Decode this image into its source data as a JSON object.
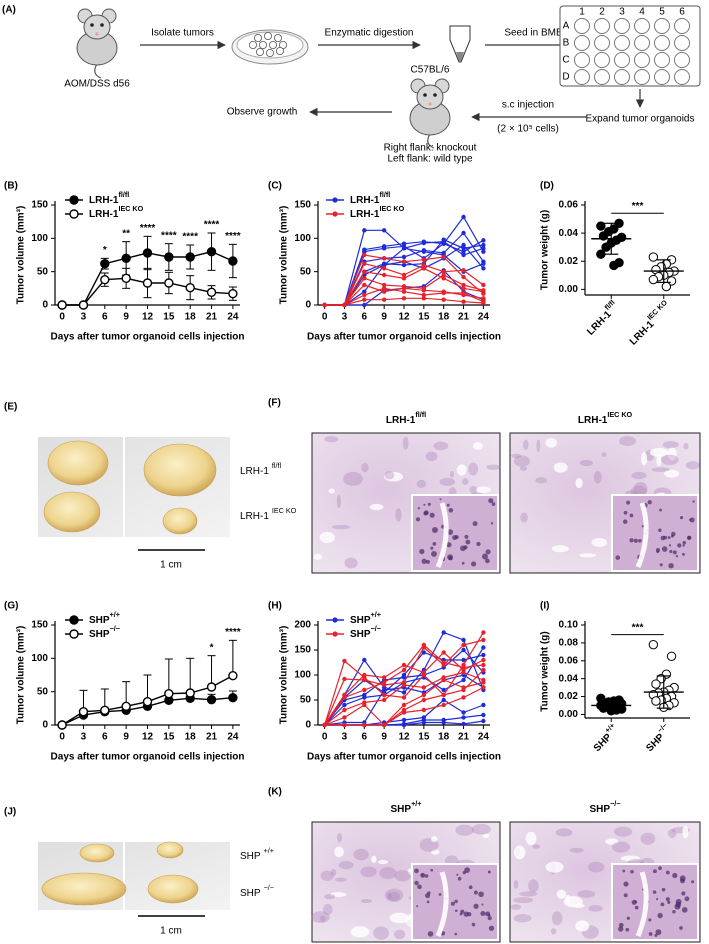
{
  "workflow": {
    "panel": "(A)",
    "start_label": "AOM/DSS d56",
    "steps": [
      "Isolate tumors",
      "Enzymatic digestion",
      "Seed in BME"
    ],
    "plate_cols": [
      "1",
      "2",
      "3",
      "4",
      "5",
      "6"
    ],
    "plate_rows": [
      "A",
      "B",
      "C",
      "D"
    ],
    "expand": "Expand tumor organoids",
    "injection": "s.c injection",
    "cells": "(2 × 10⁵ cells)",
    "strain": "C57BL/6",
    "flanks": [
      "Right flank: knockout",
      "Left flank: wild type"
    ],
    "observe": "Observe growth"
  },
  "chart_data": [
    {
      "type": "errorline",
      "panel": "(B)",
      "y_label": "Tumor volume (mm³)",
      "x_label": "Days after tumor organoid cells injection",
      "x": [
        0,
        3,
        6,
        9,
        12,
        15,
        18,
        21,
        24
      ],
      "xlim": [
        -1,
        25
      ],
      "xticks": [
        0,
        3,
        6,
        9,
        12,
        15,
        18,
        21,
        24
      ],
      "ylim": [
        0,
        150
      ],
      "yticks": [
        0,
        50,
        100,
        150
      ],
      "legend": "upper left",
      "series": [
        {
          "name": "LRH-1",
          "name_sup": "fl/fl",
          "color": "#000000",
          "marker": "filled",
          "error_bars": "both",
          "values": [
            0,
            0,
            62,
            70,
            78,
            72,
            72,
            80,
            66
          ],
          "errors": [
            0,
            0,
            8,
            25,
            25,
            20,
            18,
            28,
            25
          ]
        },
        {
          "name": "LRH-1",
          "name_sup": "IEC KO",
          "color": "#000000",
          "marker": "open",
          "error_bars": "both",
          "values": [
            0,
            0,
            38,
            40,
            33,
            33,
            26,
            19,
            17
          ],
          "errors": [
            0,
            0,
            10,
            15,
            22,
            16,
            18,
            10,
            10
          ]
        }
      ],
      "annotations": [
        {
          "x": 6,
          "label": "*"
        },
        {
          "x": 9,
          "label": "**"
        },
        {
          "x": 12,
          "label": "****"
        },
        {
          "x": 15,
          "label": "****"
        },
        {
          "x": 18,
          "label": "****"
        },
        {
          "x": 21,
          "label": "****"
        },
        {
          "x": 24,
          "label": "****"
        }
      ]
    },
    {
      "type": "multiline",
      "panel": "(C)",
      "y_label": "Tumor volume (mm³)",
      "x_label": "Days after tumor organoid cells injection",
      "x": [
        0,
        3,
        6,
        9,
        12,
        15,
        18,
        21,
        24
      ],
      "xlim": [
        -1,
        25
      ],
      "xticks": [
        0,
        3,
        6,
        9,
        12,
        15,
        18,
        21,
        24
      ],
      "ylim": [
        0,
        150
      ],
      "yticks": [
        0,
        50,
        100,
        150
      ],
      "legend": "upper left",
      "groups": [
        {
          "name": "LRH-1",
          "name_sup": "fl/fl",
          "color": "#1f2bd8",
          "series": [
            [
              0,
              0,
              112,
              112,
              85,
              93,
              95,
              75,
              85
            ],
            [
              0,
              0,
              83,
              88,
              92,
              95,
              92,
              132,
              80
            ],
            [
              0,
              0,
              80,
              85,
              88,
              70,
              92,
              80,
              97
            ],
            [
              0,
              0,
              65,
              70,
              72,
              82,
              78,
              108,
              65
            ],
            [
              0,
              0,
              50,
              62,
              60,
              62,
              98,
              85,
              90
            ],
            [
              0,
              0,
              45,
              60,
              65,
              55,
              70,
              90,
              55
            ],
            [
              0,
              0,
              20,
              60,
              85,
              80,
              75,
              50,
              62
            ],
            [
              0,
              0,
              0,
              22,
              25,
              28,
              52,
              20,
              8
            ]
          ]
        },
        {
          "name": "LRH-1",
          "name_sup": "IEC KO",
          "color": "#e8222b",
          "series": [
            [
              0,
              0,
              75,
              70,
              65,
              68,
              72,
              42,
              17
            ],
            [
              0,
              0,
              62,
              55,
              45,
              60,
              50,
              52,
              30
            ],
            [
              0,
              0,
              50,
              45,
              40,
              55,
              40,
              25,
              20
            ],
            [
              0,
              0,
              40,
              30,
              28,
              25,
              45,
              30,
              22
            ],
            [
              0,
              0,
              30,
              20,
              25,
              22,
              20,
              15,
              10
            ],
            [
              0,
              0,
              15,
              25,
              20,
              15,
              18,
              18,
              5
            ],
            [
              0,
              0,
              8,
              8,
              10,
              10,
              8,
              5,
              3
            ]
          ]
        }
      ]
    },
    {
      "type": "dotplot",
      "panel": "(D)",
      "y_label": "Tumor weight (g)",
      "categories": [
        {
          "base": "LRH-1",
          "sup": "fl/fl"
        },
        {
          "base": "LRH-1",
          "sup": "IEC KO"
        }
      ],
      "ylim": [
        -0.004,
        0.06
      ],
      "yticks": [
        {
          "value": 0,
          "label": "0.00"
        },
        {
          "value": 0.02,
          "label": "0.02"
        },
        {
          "value": 0.04,
          "label": "0.04"
        },
        {
          "value": 0.06,
          "label": "0.06"
        }
      ],
      "groups": [
        {
          "marker": "filled",
          "mean": 0.036,
          "sd": 0.011,
          "values": [
            0.045,
            0.047,
            0.043,
            0.041,
            0.038,
            0.037,
            0.035,
            0.033,
            0.03,
            0.025,
            0.019,
            0.017
          ]
        },
        {
          "marker": "open",
          "mean": 0.013,
          "sd": 0.008,
          "values": [
            0.023,
            0.021,
            0.018,
            0.016,
            0.014,
            0.013,
            0.012,
            0.01,
            0.009,
            0.007,
            0.006,
            0.002
          ]
        }
      ],
      "significance": "***"
    },
    {
      "type": "errorline",
      "panel": "(G)",
      "y_label": "Tumor volume (mm³)",
      "x_label": "Days after tumor organoid cells injection",
      "x": [
        0,
        3,
        6,
        9,
        12,
        15,
        18,
        21,
        24
      ],
      "xlim": [
        -1,
        25
      ],
      "xticks": [
        0,
        3,
        6,
        9,
        12,
        15,
        18,
        21,
        24
      ],
      "ylim": [
        0,
        150
      ],
      "yticks": [
        0,
        50,
        100,
        150
      ],
      "legend": "upper left",
      "series": [
        {
          "name": "SHP",
          "name_sup": "+/+",
          "color": "#000000",
          "marker": "filled",
          "error_bars": "upper",
          "values": [
            0,
            15,
            20,
            22,
            28,
            37,
            40,
            38,
            41
          ],
          "errors": [
            0,
            4,
            5,
            5,
            6,
            8,
            9,
            8,
            10
          ]
        },
        {
          "name": "SHP",
          "name_sup": "−/−",
          "color": "#000000",
          "marker": "open",
          "error_bars": "upper",
          "values": [
            0,
            20,
            22,
            28,
            35,
            47,
            48,
            57,
            74
          ],
          "errors": [
            0,
            32,
            32,
            37,
            40,
            52,
            52,
            47,
            53
          ]
        }
      ],
      "annotations": [
        {
          "x": 21,
          "label": "*"
        },
        {
          "x": 24,
          "label": "****"
        }
      ]
    },
    {
      "type": "multiline",
      "panel": "(H)",
      "y_label": "Tumor volume (mm³)",
      "x_label": "Days after tumor organoid cells injection",
      "x": [
        0,
        3,
        6,
        9,
        12,
        15,
        18,
        21,
        24
      ],
      "xlim": [
        -1,
        25
      ],
      "xticks": [
        0,
        3,
        6,
        9,
        12,
        15,
        18,
        21,
        24
      ],
      "ylim": [
        0,
        200
      ],
      "yticks": [
        0,
        50,
        100,
        150,
        200
      ],
      "legend": "upper left",
      "groups": [
        {
          "name": "SHP",
          "name_sup": "+/+",
          "color": "#1f2bd8",
          "series": [
            [
              0,
              55,
              90,
              65,
              100,
              145,
              130,
              130,
              140
            ],
            [
              0,
              60,
              130,
              75,
              65,
              110,
              185,
              170,
              70
            ],
            [
              0,
              50,
              60,
              90,
              95,
              100,
              115,
              150,
              105
            ],
            [
              0,
              40,
              55,
              60,
              85,
              95,
              70,
              90,
              155
            ],
            [
              0,
              5,
              5,
              70,
              75,
              65,
              90,
              100,
              75
            ],
            [
              0,
              0,
              0,
              5,
              10,
              15,
              50,
              25,
              40
            ],
            [
              0,
              0,
              0,
              0,
              2,
              10,
              10,
              15,
              20
            ],
            [
              0,
              0,
              0,
              0,
              0,
              5,
              5,
              2,
              8
            ]
          ]
        },
        {
          "name": "SHP",
          "name_sup": "−/−",
          "color": "#e8222b",
          "series": [
            [
              0,
              128,
              95,
              60,
              55,
              100,
              60,
              120,
              185
            ],
            [
              0,
              92,
              90,
              80,
              85,
              155,
              120,
              160,
              170
            ],
            [
              0,
              60,
              100,
              95,
              120,
              105,
              145,
              110,
              130
            ],
            [
              0,
              55,
              70,
              85,
              110,
              160,
              125,
              115,
              120
            ],
            [
              0,
              30,
              45,
              50,
              80,
              75,
              95,
              105,
              90
            ],
            [
              0,
              15,
              40,
              0,
              40,
              60,
              90,
              75,
              85
            ],
            [
              0,
              0,
              0,
              0,
              30,
              50,
              60,
              70,
              110
            ],
            [
              0,
              0,
              0,
              0,
              25,
              30,
              40,
              55,
              75
            ]
          ]
        }
      ]
    },
    {
      "type": "dotplot",
      "panel": "(I)",
      "y_label": "Tumor weight (g)",
      "categories": [
        {
          "base": "SHP",
          "sup": "+/+"
        },
        {
          "base": "SHP",
          "sup": "−/−"
        }
      ],
      "ylim": [
        -0.004,
        0.1
      ],
      "yticks": [
        {
          "value": 0,
          "label": "0.00"
        },
        {
          "value": 0.02,
          "label": "0.02"
        },
        {
          "value": 0.04,
          "label": "0.04"
        },
        {
          "value": 0.06,
          "label": "0.06"
        },
        {
          "value": 0.08,
          "label": "0.08"
        },
        {
          "value": 0.1,
          "label": "0.10"
        }
      ],
      "groups": [
        {
          "marker": "filled",
          "mean": 0.01,
          "sd": 0.004,
          "values": [
            0.018,
            0.016,
            0.015,
            0.014,
            0.013,
            0.012,
            0.012,
            0.011,
            0.01,
            0.01,
            0.009,
            0.008,
            0.008,
            0.007,
            0.006,
            0.005,
            0.004
          ]
        },
        {
          "marker": "open",
          "mean": 0.025,
          "sd": 0.018,
          "values": [
            0.078,
            0.065,
            0.045,
            0.04,
            0.034,
            0.03,
            0.027,
            0.025,
            0.024,
            0.022,
            0.02,
            0.018,
            0.016,
            0.015,
            0.013,
            0.01,
            0.008
          ]
        }
      ],
      "significance": "***"
    }
  ],
  "photos": [
    {
      "panel": "(E)",
      "labels": [
        {
          "base": "LRH-1",
          "sup": "fl/fl"
        },
        {
          "base": "LRH-1",
          "sup": "IEC KO"
        }
      ],
      "scale": "1 cm"
    },
    {
      "panel": "(F)",
      "titles": [
        {
          "base": "LRH-1",
          "sup": "fl/fl"
        },
        {
          "base": "LRH-1",
          "sup": "IEC KO"
        }
      ]
    },
    {
      "panel": "(J)",
      "labels": [
        {
          "base": "SHP",
          "sup": "+/+"
        },
        {
          "base": "SHP",
          "sup": "−/−"
        }
      ],
      "scale": "1 cm"
    },
    {
      "panel": "(K)",
      "titles": [
        {
          "base": "SHP",
          "sup": "+/+"
        },
        {
          "base": "SHP",
          "sup": "−/−"
        }
      ]
    }
  ]
}
